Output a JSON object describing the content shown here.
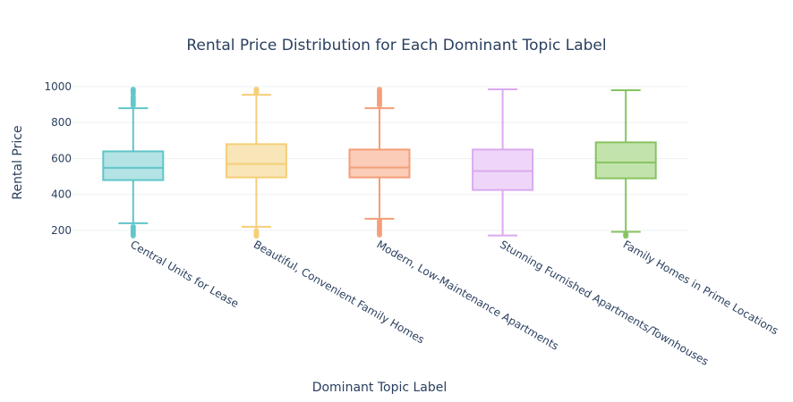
{
  "chart_data": {
    "type": "box",
    "title": "Rental Price Distribution for Each Dominant Topic Label",
    "xlabel": "Dominant Topic Label",
    "ylabel": "Rental Price",
    "yticks": [
      200,
      400,
      600,
      800,
      1000
    ],
    "ylim": [
      150,
      1010
    ],
    "grid": true,
    "legend": "none",
    "series": [
      {
        "label": "Central Units for Lease",
        "color": "#60c5c9",
        "fill": "#b3e3e4",
        "min": 240,
        "q1": 480,
        "median": 548,
        "q3": 640,
        "max": 880,
        "outliers": [
          170,
          178,
          185,
          192,
          200,
          208,
          215,
          222,
          895,
          905,
          915,
          925,
          935,
          945,
          960,
          970,
          978,
          985
        ]
      },
      {
        "label": "Beautiful, Convenient Family Homes",
        "color": "#f5ce77",
        "fill": "#f8e6b8",
        "min": 220,
        "q1": 495,
        "median": 570,
        "q3": 680,
        "max": 955,
        "outliers": [
          168,
          175,
          182,
          190,
          200,
          965,
          972,
          980,
          985
        ]
      },
      {
        "label": "Modern, Low-Maintenance Apartments",
        "color": "#f29e78",
        "fill": "#fbccb7",
        "min": 265,
        "q1": 495,
        "median": 550,
        "q3": 650,
        "max": 880,
        "outliers": [
          175,
          185,
          195,
          205,
          215,
          225,
          235,
          245,
          255,
          895,
          905,
          915,
          925,
          935,
          945,
          955,
          965,
          975,
          985
        ]
      },
      {
        "label": "Stunning Furnished Apartments/Townhouses",
        "color": "#dba9f0",
        "fill": "#efd6f8",
        "min": 172,
        "q1": 425,
        "median": 530,
        "q3": 650,
        "max": 985,
        "outliers": []
      },
      {
        "label": "Family Homes in Prime Locations",
        "color": "#86c35f",
        "fill": "#c3e3ad",
        "min": 192,
        "q1": 490,
        "median": 578,
        "q3": 690,
        "max": 980,
        "outliers": [
          168,
          174,
          180
        ]
      }
    ]
  }
}
